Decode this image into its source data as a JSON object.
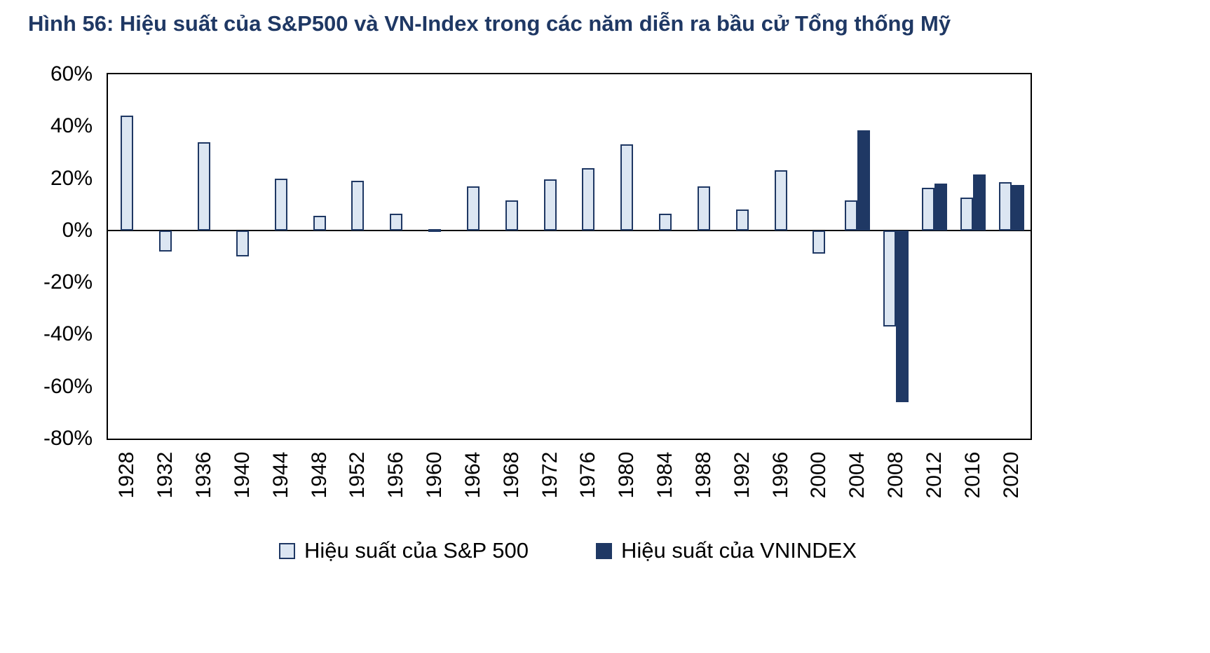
{
  "title": "Hình 56: Hiệu suất của S&P500 và VN-Index trong các năm diễn ra bầu cử Tổng thống Mỹ",
  "colors": {
    "sp500_fill": "#dce6f2",
    "sp500_border": "#1f3864",
    "vnindex_fill": "#1f3864",
    "title_color": "#1f3864",
    "axis_color": "#000000"
  },
  "chart_data": {
    "type": "bar",
    "title": "Hình 56: Hiệu suất của S&P500 và VN-Index trong các năm diễn ra bầu cử Tổng thống Mỹ",
    "categories": [
      "1928",
      "1932",
      "1936",
      "1940",
      "1944",
      "1948",
      "1952",
      "1956",
      "1960",
      "1964",
      "1968",
      "1972",
      "1976",
      "1980",
      "1984",
      "1988",
      "1992",
      "1996",
      "2000",
      "2004",
      "2008",
      "2012",
      "2016",
      "2020"
    ],
    "series": [
      {
        "name": "Hiệu suất của S&P 500",
        "values": [
          44,
          -8,
          34,
          -10,
          20,
          5.5,
          19,
          6.5,
          0.5,
          17,
          11.5,
          19.5,
          24,
          33,
          6.5,
          17,
          8,
          23,
          -9,
          11.5,
          -37,
          16.5,
          12.5,
          18.5
        ]
      },
      {
        "name": "Hiệu suất của VNINDEX",
        "values": [
          null,
          null,
          null,
          null,
          null,
          null,
          null,
          null,
          null,
          null,
          null,
          null,
          null,
          null,
          null,
          null,
          null,
          null,
          null,
          38.5,
          -66,
          18,
          21.5,
          17.5
        ]
      }
    ],
    "xlabel": "",
    "ylabel": "",
    "ylim": [
      -80,
      60
    ],
    "ytick_labels": [
      "60%",
      "40%",
      "20%",
      "0%",
      "-20%",
      "-40%",
      "-60%",
      "-80%"
    ],
    "ytick_values": [
      60,
      40,
      20,
      0,
      -20,
      -40,
      -60,
      -80
    ],
    "grid": false,
    "legend_position": "bottom"
  },
  "legend": {
    "sp500_label": "Hiệu suất của S&P 500",
    "vnindex_label": "Hiệu suất của VNINDEX"
  }
}
